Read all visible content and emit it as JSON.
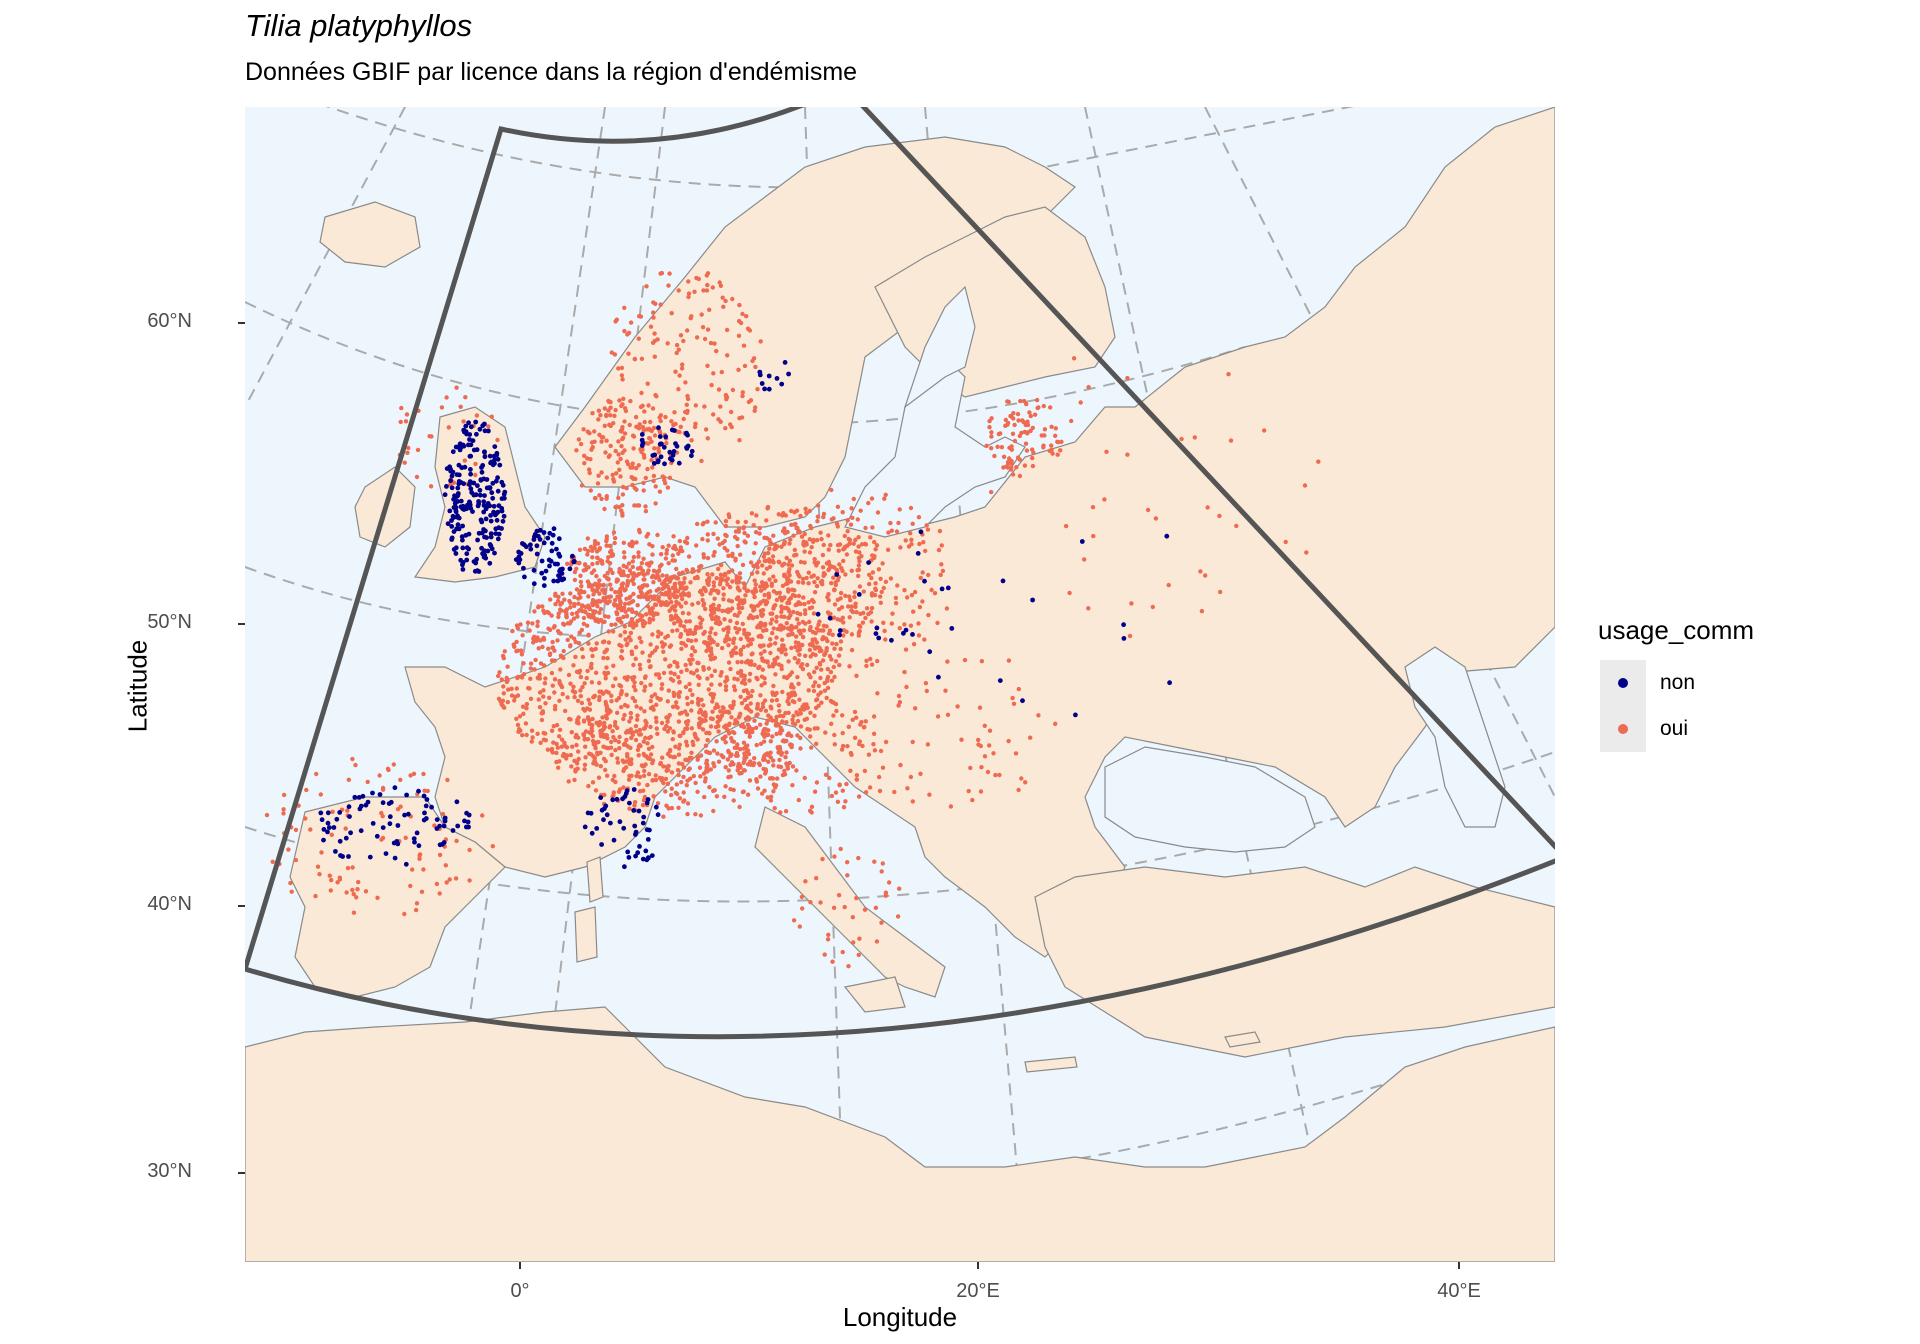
{
  "title": "Tilia platyphyllos",
  "subtitle": "Données GBIF par licence dans la région d'endémisme",
  "axes": {
    "xlabel": "Longitude",
    "ylabel": "Latitude",
    "x_ticks": [
      "0°",
      "20°E",
      "40°E"
    ],
    "y_ticks": [
      "60°N",
      "50°N",
      "40°N",
      "30°N"
    ]
  },
  "legend": {
    "title": "usage_comm",
    "items": [
      {
        "label": "non",
        "color": "#00008b"
      },
      {
        "label": "oui",
        "color": "#ee6a50"
      }
    ]
  },
  "colors": {
    "sea": "#eef6fd",
    "land": "#fae9d6",
    "borders": "#8a8a8a",
    "graticule": "#aaaaaa",
    "region_outline": "#555555"
  },
  "map": {
    "projection": "conic (Lambert-style)",
    "region_of_endemism": "bounded by 0°E to 41°E meridians, ~30°N to ~70°N",
    "graticule": "dashed meridians and parallels every 10°"
  }
}
